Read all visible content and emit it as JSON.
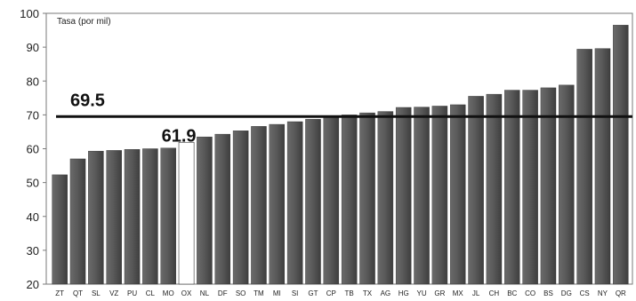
{
  "chart_data": {
    "type": "bar",
    "ylabel": "Tasa (por mil)",
    "ylim": [
      20,
      100
    ],
    "yticks": [
      20,
      30,
      40,
      50,
      60,
      70,
      80,
      90,
      100
    ],
    "grid": false,
    "categories": [
      "ZT",
      "QT",
      "SL",
      "VZ",
      "PU",
      "CL",
      "MO",
      "OX",
      "NL",
      "DF",
      "SO",
      "TM",
      "MI",
      "SI",
      "GT",
      "CP",
      "TB",
      "TX",
      "AG",
      "HG",
      "YU",
      "GR",
      "MX",
      "JL",
      "CH",
      "BC",
      "CO",
      "BS",
      "DG",
      "CS",
      "NY",
      "QR"
    ],
    "values": [
      52.3,
      57.0,
      59.3,
      59.5,
      59.8,
      60.0,
      60.2,
      61.9,
      63.5,
      64.3,
      65.3,
      66.6,
      67.2,
      68.0,
      68.7,
      69.5,
      70.0,
      70.6,
      71.0,
      72.2,
      72.3,
      72.6,
      73.0,
      75.5,
      76.1,
      77.3,
      77.3,
      78.0,
      78.8,
      89.4,
      89.6,
      96.5
    ],
    "highlight": "OX",
    "reference_line": {
      "value": 69.5,
      "label": "69.5"
    },
    "highlight_label": "61.9",
    "bar_color": "#555555",
    "highlight_color": "#ffffff",
    "line_color": "#111111"
  }
}
